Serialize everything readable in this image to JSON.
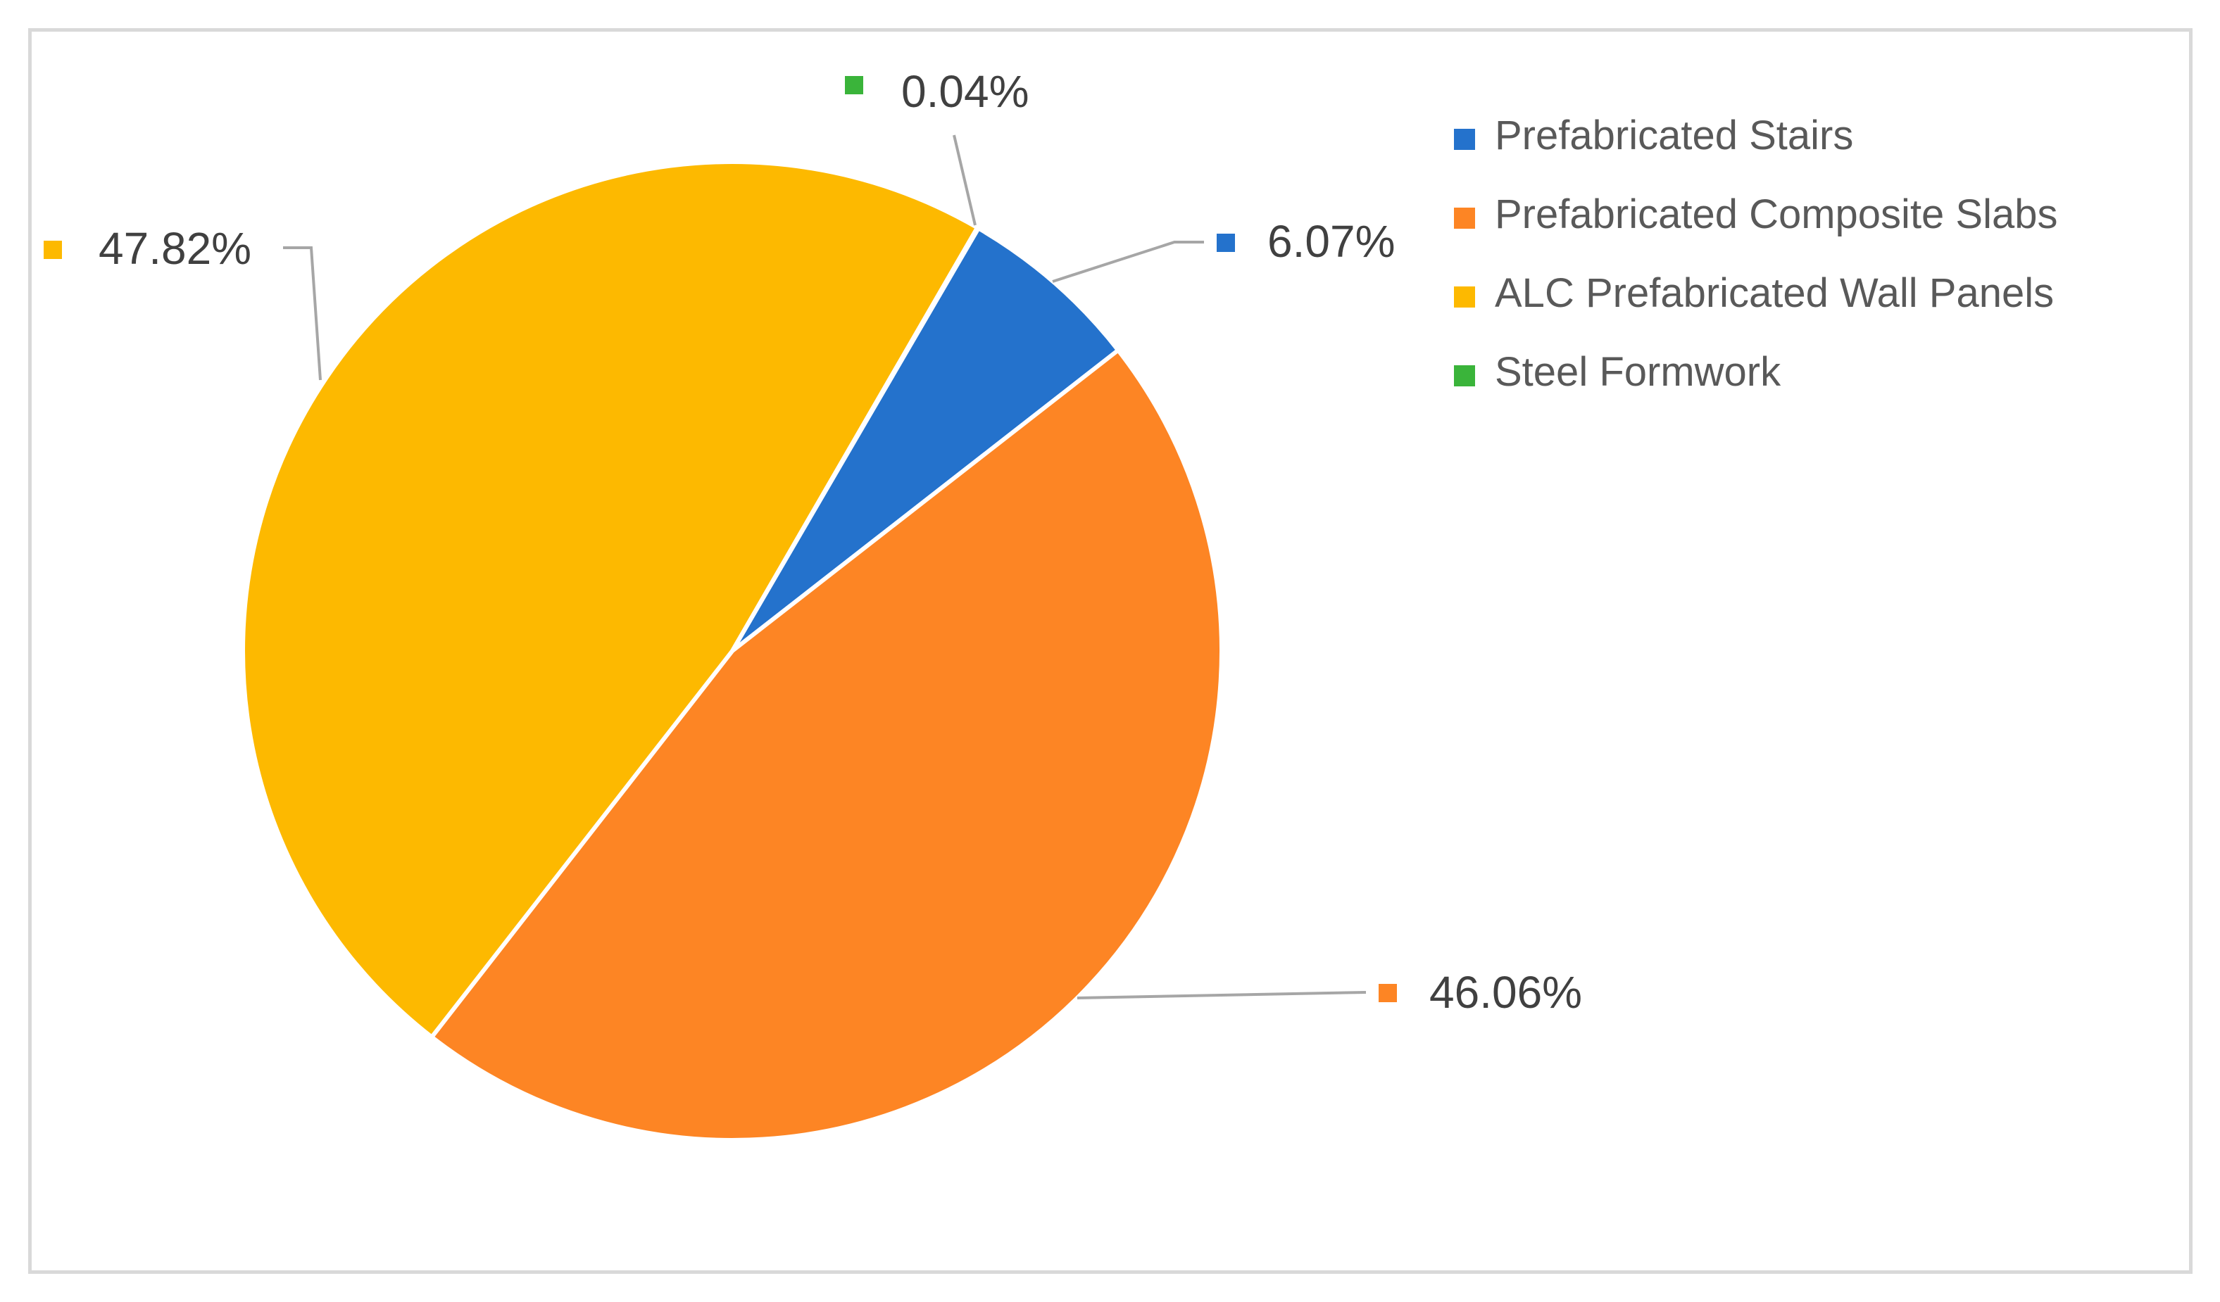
{
  "chart_data": {
    "type": "pie",
    "title": "",
    "legend_position": "top-right",
    "slices": [
      {
        "name": "Prefabricated Stairs",
        "value": 6.07,
        "label": "6.07%",
        "color": "#2472cc"
      },
      {
        "name": "Prefabricated Composite Slabs",
        "value": 46.06,
        "label": "46.06%",
        "color": "#fd8524"
      },
      {
        "name": "ALC Prefabricated Wall Panels",
        "value": 47.82,
        "label": "47.82%",
        "color": "#fdb900"
      },
      {
        "name": "Steel Formwork",
        "value": 0.04,
        "label": "0.04%",
        "color": "#3ab43a"
      }
    ]
  }
}
